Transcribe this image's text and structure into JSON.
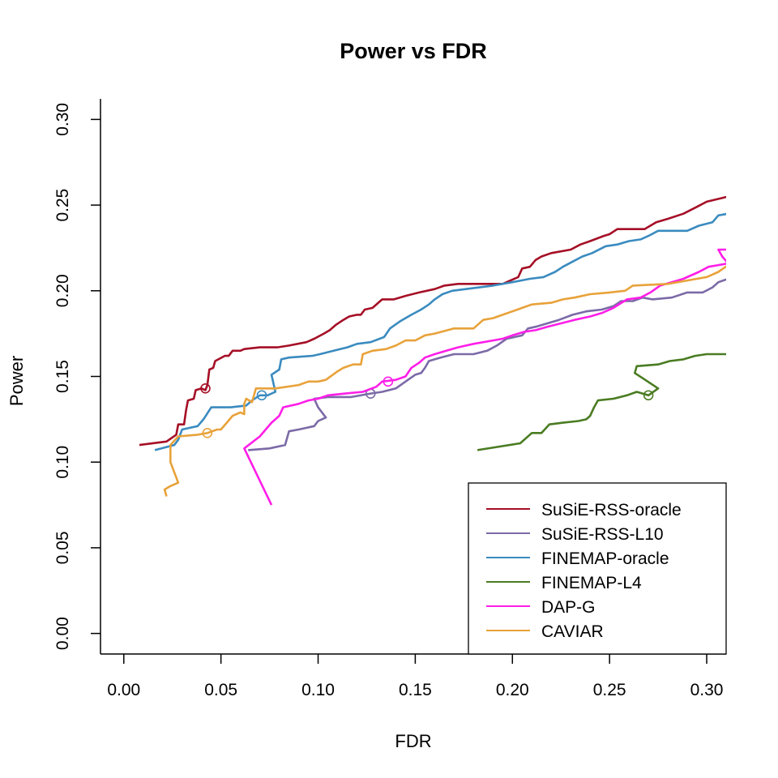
{
  "chart_data": {
    "type": "line",
    "title": "Power vs FDR",
    "xlabel": "FDR",
    "ylabel": "Power",
    "xlim": [
      -0.012,
      0.31
    ],
    "ylim": [
      -0.012,
      0.312
    ],
    "xticks": [
      0.0,
      0.05,
      0.1,
      0.15,
      0.2,
      0.25,
      0.3
    ],
    "xtick_labels": [
      "0.00",
      "0.05",
      "0.10",
      "0.15",
      "0.20",
      "0.25",
      "0.30"
    ],
    "yticks": [
      0.0,
      0.05,
      0.1,
      0.15,
      0.2,
      0.25,
      0.3
    ],
    "ytick_labels": [
      "0.00",
      "0.05",
      "0.10",
      "0.15",
      "0.20",
      "0.25",
      "0.30"
    ],
    "grid": false,
    "legend_position": "bottom-right",
    "series": [
      {
        "name": "SuSiE-RSS-oracle",
        "color": "#a50f26",
        "marker": [
          0.042,
          0.143
        ],
        "points": [
          [
            0.008,
            0.11
          ],
          [
            0.022,
            0.112
          ],
          [
            0.027,
            0.116
          ],
          [
            0.028,
            0.122
          ],
          [
            0.031,
            0.122
          ],
          [
            0.032,
            0.13
          ],
          [
            0.033,
            0.136
          ],
          [
            0.036,
            0.137
          ],
          [
            0.037,
            0.142
          ],
          [
            0.04,
            0.143
          ],
          [
            0.042,
            0.142
          ],
          [
            0.043,
            0.145
          ],
          [
            0.044,
            0.154
          ],
          [
            0.046,
            0.155
          ],
          [
            0.047,
            0.159
          ],
          [
            0.052,
            0.162
          ],
          [
            0.054,
            0.162
          ],
          [
            0.056,
            0.165
          ],
          [
            0.06,
            0.165
          ],
          [
            0.062,
            0.166
          ],
          [
            0.07,
            0.167
          ],
          [
            0.079,
            0.167
          ],
          [
            0.085,
            0.168
          ],
          [
            0.094,
            0.17
          ],
          [
            0.098,
            0.172
          ],
          [
            0.103,
            0.175
          ],
          [
            0.106,
            0.177
          ],
          [
            0.109,
            0.18
          ],
          [
            0.113,
            0.183
          ],
          [
            0.116,
            0.185
          ],
          [
            0.12,
            0.186
          ],
          [
            0.122,
            0.186
          ],
          [
            0.124,
            0.189
          ],
          [
            0.128,
            0.19
          ],
          [
            0.133,
            0.195
          ],
          [
            0.139,
            0.195
          ],
          [
            0.145,
            0.197
          ],
          [
            0.152,
            0.199
          ],
          [
            0.16,
            0.201
          ],
          [
            0.165,
            0.203
          ],
          [
            0.172,
            0.204
          ],
          [
            0.195,
            0.204
          ],
          [
            0.199,
            0.206
          ],
          [
            0.203,
            0.208
          ],
          [
            0.205,
            0.213
          ],
          [
            0.209,
            0.214
          ],
          [
            0.212,
            0.218
          ],
          [
            0.215,
            0.22
          ],
          [
            0.22,
            0.222
          ],
          [
            0.23,
            0.224
          ],
          [
            0.235,
            0.227
          ],
          [
            0.24,
            0.229
          ],
          [
            0.247,
            0.232
          ],
          [
            0.25,
            0.233
          ],
          [
            0.254,
            0.236
          ],
          [
            0.268,
            0.236
          ],
          [
            0.274,
            0.24
          ],
          [
            0.28,
            0.242
          ],
          [
            0.288,
            0.245
          ],
          [
            0.295,
            0.249
          ],
          [
            0.3,
            0.252
          ],
          [
            0.311,
            0.255
          ]
        ]
      },
      {
        "name": "SuSiE-RSS-L10",
        "color": "#7b6aa7",
        "marker": [
          0.127,
          0.14
        ],
        "points": [
          [
            0.064,
            0.107
          ],
          [
            0.075,
            0.108
          ],
          [
            0.083,
            0.11
          ],
          [
            0.085,
            0.118
          ],
          [
            0.09,
            0.119
          ],
          [
            0.098,
            0.121
          ],
          [
            0.1,
            0.124
          ],
          [
            0.104,
            0.126
          ],
          [
            0.1,
            0.132
          ],
          [
            0.098,
            0.137
          ],
          [
            0.105,
            0.138
          ],
          [
            0.117,
            0.138
          ],
          [
            0.127,
            0.14
          ],
          [
            0.133,
            0.141
          ],
          [
            0.14,
            0.143
          ],
          [
            0.145,
            0.147
          ],
          [
            0.15,
            0.151
          ],
          [
            0.153,
            0.152
          ],
          [
            0.155,
            0.155
          ],
          [
            0.157,
            0.159
          ],
          [
            0.163,
            0.161
          ],
          [
            0.17,
            0.163
          ],
          [
            0.18,
            0.163
          ],
          [
            0.187,
            0.165
          ],
          [
            0.192,
            0.168
          ],
          [
            0.197,
            0.172
          ],
          [
            0.205,
            0.174
          ],
          [
            0.208,
            0.178
          ],
          [
            0.212,
            0.179
          ],
          [
            0.218,
            0.181
          ],
          [
            0.224,
            0.183
          ],
          [
            0.231,
            0.186
          ],
          [
            0.238,
            0.188
          ],
          [
            0.246,
            0.189
          ],
          [
            0.252,
            0.191
          ],
          [
            0.256,
            0.194
          ],
          [
            0.262,
            0.194
          ],
          [
            0.267,
            0.196
          ],
          [
            0.272,
            0.195
          ],
          [
            0.282,
            0.196
          ],
          [
            0.29,
            0.199
          ],
          [
            0.298,
            0.199
          ],
          [
            0.303,
            0.202
          ],
          [
            0.306,
            0.205
          ],
          [
            0.311,
            0.207
          ]
        ]
      },
      {
        "name": "FINEMAP-oracle",
        "color": "#3a8bbf",
        "marker": [
          0.071,
          0.139
        ],
        "points": [
          [
            0.016,
            0.107
          ],
          [
            0.026,
            0.11
          ],
          [
            0.028,
            0.113
          ],
          [
            0.03,
            0.119
          ],
          [
            0.034,
            0.12
          ],
          [
            0.038,
            0.121
          ],
          [
            0.041,
            0.125
          ],
          [
            0.045,
            0.132
          ],
          [
            0.055,
            0.132
          ],
          [
            0.063,
            0.133
          ],
          [
            0.066,
            0.136
          ],
          [
            0.07,
            0.139
          ],
          [
            0.074,
            0.139
          ],
          [
            0.078,
            0.141
          ],
          [
            0.076,
            0.151
          ],
          [
            0.08,
            0.154
          ],
          [
            0.081,
            0.16
          ],
          [
            0.085,
            0.161
          ],
          [
            0.097,
            0.162
          ],
          [
            0.101,
            0.163
          ],
          [
            0.108,
            0.165
          ],
          [
            0.115,
            0.167
          ],
          [
            0.12,
            0.169
          ],
          [
            0.127,
            0.17
          ],
          [
            0.134,
            0.173
          ],
          [
            0.137,
            0.178
          ],
          [
            0.142,
            0.182
          ],
          [
            0.148,
            0.186
          ],
          [
            0.153,
            0.189
          ],
          [
            0.157,
            0.192
          ],
          [
            0.16,
            0.195
          ],
          [
            0.164,
            0.198
          ],
          [
            0.169,
            0.2
          ],
          [
            0.176,
            0.201
          ],
          [
            0.183,
            0.202
          ],
          [
            0.19,
            0.203
          ],
          [
            0.2,
            0.205
          ],
          [
            0.209,
            0.207
          ],
          [
            0.216,
            0.208
          ],
          [
            0.222,
            0.211
          ],
          [
            0.226,
            0.214
          ],
          [
            0.231,
            0.217
          ],
          [
            0.236,
            0.22
          ],
          [
            0.241,
            0.222
          ],
          [
            0.248,
            0.226
          ],
          [
            0.254,
            0.227
          ],
          [
            0.26,
            0.229
          ],
          [
            0.266,
            0.23
          ],
          [
            0.27,
            0.232
          ],
          [
            0.275,
            0.235
          ],
          [
            0.29,
            0.235
          ],
          [
            0.296,
            0.238
          ],
          [
            0.303,
            0.24
          ],
          [
            0.306,
            0.244
          ],
          [
            0.311,
            0.245
          ]
        ]
      },
      {
        "name": "FINEMAP-L4",
        "color": "#4a7c22",
        "marker": [
          0.27,
          0.139
        ],
        "points": [
          [
            0.182,
            0.107
          ],
          [
            0.204,
            0.111
          ],
          [
            0.21,
            0.117
          ],
          [
            0.215,
            0.117
          ],
          [
            0.219,
            0.122
          ],
          [
            0.226,
            0.123
          ],
          [
            0.234,
            0.124
          ],
          [
            0.238,
            0.125
          ],
          [
            0.24,
            0.127
          ],
          [
            0.242,
            0.132
          ],
          [
            0.244,
            0.136
          ],
          [
            0.252,
            0.137
          ],
          [
            0.259,
            0.139
          ],
          [
            0.264,
            0.141
          ],
          [
            0.27,
            0.139
          ],
          [
            0.275,
            0.143
          ],
          [
            0.267,
            0.149
          ],
          [
            0.263,
            0.152
          ],
          [
            0.264,
            0.156
          ],
          [
            0.275,
            0.157
          ],
          [
            0.281,
            0.159
          ],
          [
            0.288,
            0.16
          ],
          [
            0.294,
            0.162
          ],
          [
            0.3,
            0.163
          ],
          [
            0.311,
            0.163
          ]
        ]
      },
      {
        "name": "DAP-G",
        "color": "#ff1ee8",
        "marker": [
          0.136,
          0.147
        ],
        "points": [
          [
            0.076,
            0.075
          ],
          [
            0.062,
            0.108
          ],
          [
            0.07,
            0.115
          ],
          [
            0.076,
            0.123
          ],
          [
            0.08,
            0.127
          ],
          [
            0.082,
            0.132
          ],
          [
            0.09,
            0.134
          ],
          [
            0.095,
            0.136
          ],
          [
            0.1,
            0.137
          ],
          [
            0.105,
            0.139
          ],
          [
            0.114,
            0.14
          ],
          [
            0.123,
            0.141
          ],
          [
            0.13,
            0.144
          ],
          [
            0.133,
            0.147
          ],
          [
            0.14,
            0.148
          ],
          [
            0.145,
            0.15
          ],
          [
            0.148,
            0.155
          ],
          [
            0.152,
            0.158
          ],
          [
            0.155,
            0.161
          ],
          [
            0.16,
            0.163
          ],
          [
            0.166,
            0.165
          ],
          [
            0.172,
            0.167
          ],
          [
            0.18,
            0.169
          ],
          [
            0.19,
            0.171
          ],
          [
            0.195,
            0.172
          ],
          [
            0.2,
            0.174
          ],
          [
            0.206,
            0.176
          ],
          [
            0.212,
            0.177
          ],
          [
            0.218,
            0.179
          ],
          [
            0.225,
            0.181
          ],
          [
            0.232,
            0.183
          ],
          [
            0.24,
            0.185
          ],
          [
            0.246,
            0.187
          ],
          [
            0.252,
            0.19
          ],
          [
            0.259,
            0.195
          ],
          [
            0.266,
            0.196
          ],
          [
            0.271,
            0.199
          ],
          [
            0.276,
            0.203
          ],
          [
            0.282,
            0.205
          ],
          [
            0.288,
            0.207
          ],
          [
            0.296,
            0.211
          ],
          [
            0.301,
            0.214
          ],
          [
            0.306,
            0.215
          ],
          [
            0.311,
            0.216
          ],
          [
            0.308,
            0.22
          ],
          [
            0.306,
            0.224
          ],
          [
            0.311,
            0.224
          ]
        ]
      },
      {
        "name": "CAVIAR",
        "color": "#e8a23a",
        "marker": [
          0.043,
          0.117
        ],
        "points": [
          [
            0.022,
            0.08
          ],
          [
            0.021,
            0.084
          ],
          [
            0.024,
            0.086
          ],
          [
            0.028,
            0.088
          ],
          [
            0.024,
            0.1
          ],
          [
            0.024,
            0.11
          ],
          [
            0.028,
            0.115
          ],
          [
            0.038,
            0.116
          ],
          [
            0.043,
            0.117
          ],
          [
            0.048,
            0.119
          ],
          [
            0.05,
            0.119
          ],
          [
            0.053,
            0.123
          ],
          [
            0.056,
            0.127
          ],
          [
            0.06,
            0.129
          ],
          [
            0.062,
            0.128
          ],
          [
            0.062,
            0.134
          ],
          [
            0.063,
            0.137
          ],
          [
            0.066,
            0.135
          ],
          [
            0.068,
            0.143
          ],
          [
            0.078,
            0.143
          ],
          [
            0.09,
            0.145
          ],
          [
            0.095,
            0.147
          ],
          [
            0.1,
            0.147
          ],
          [
            0.104,
            0.148
          ],
          [
            0.11,
            0.153
          ],
          [
            0.113,
            0.155
          ],
          [
            0.118,
            0.157
          ],
          [
            0.122,
            0.157
          ],
          [
            0.123,
            0.163
          ],
          [
            0.128,
            0.165
          ],
          [
            0.135,
            0.166
          ],
          [
            0.14,
            0.168
          ],
          [
            0.145,
            0.171
          ],
          [
            0.15,
            0.171
          ],
          [
            0.155,
            0.174
          ],
          [
            0.16,
            0.175
          ],
          [
            0.17,
            0.178
          ],
          [
            0.18,
            0.178
          ],
          [
            0.185,
            0.183
          ],
          [
            0.19,
            0.184
          ],
          [
            0.195,
            0.186
          ],
          [
            0.2,
            0.188
          ],
          [
            0.205,
            0.19
          ],
          [
            0.21,
            0.192
          ],
          [
            0.22,
            0.193
          ],
          [
            0.226,
            0.195
          ],
          [
            0.232,
            0.196
          ],
          [
            0.24,
            0.198
          ],
          [
            0.25,
            0.199
          ],
          [
            0.258,
            0.2
          ],
          [
            0.262,
            0.203
          ],
          [
            0.28,
            0.204
          ],
          [
            0.29,
            0.206
          ],
          [
            0.3,
            0.208
          ],
          [
            0.306,
            0.211
          ],
          [
            0.311,
            0.215
          ]
        ]
      }
    ]
  }
}
